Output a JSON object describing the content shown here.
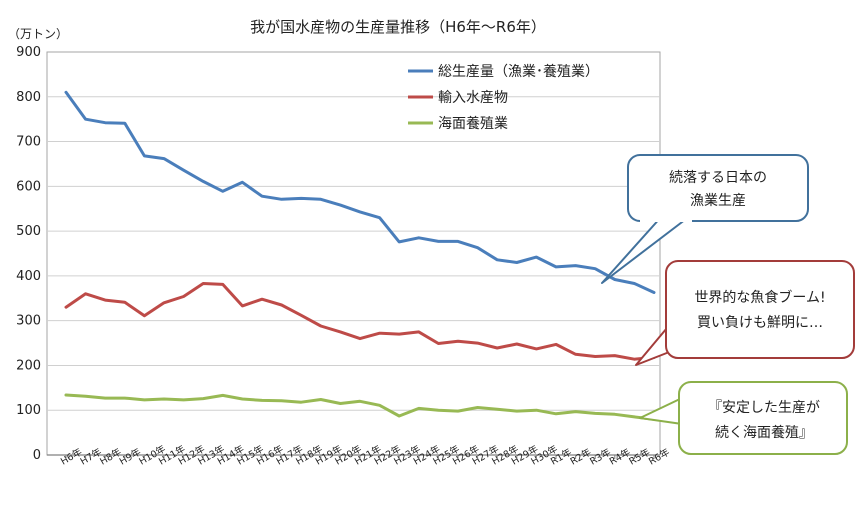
{
  "chart_data": {
    "type": "line",
    "title": "我が国水産物の生産量推移（H6年～R6年）",
    "ylabel": "（万トン）",
    "xlabel": "",
    "ylim": [
      0,
      900
    ],
    "yticks": [
      0,
      100,
      200,
      300,
      400,
      500,
      600,
      700,
      800,
      900
    ],
    "grid": "horizontal",
    "legend_position": "top-right",
    "categories": [
      "H6年",
      "H7年",
      "H8年",
      "H9年",
      "H10年",
      "H11年",
      "H12年",
      "H13年",
      "H14年",
      "H15年",
      "H16年",
      "H17年",
      "H18年",
      "H19年",
      "H20年",
      "H21年",
      "H22年",
      "H23年",
      "H24年",
      "H25年",
      "H26年",
      "H27年",
      "H28年",
      "H29年",
      "H30年",
      "R1年",
      "R2年",
      "R3年",
      "R4年",
      "R5年",
      "R6年"
    ],
    "series": [
      {
        "name": "総生産量（漁業･養殖業）",
        "color": "#4a7ebb",
        "values": [
          810,
          750,
          742,
          741,
          668,
          662,
          636,
          611,
          589,
          609,
          578,
          571,
          573,
          571,
          558,
          543,
          530,
          476,
          485,
          477,
          477,
          463,
          436,
          430,
          442,
          420,
          423,
          416,
          392,
          383,
          363
        ]
      },
      {
        "name": "輸入水産物",
        "color": "#be4b48",
        "values": [
          330,
          360,
          346,
          341,
          311,
          340,
          354,
          383,
          381,
          333,
          348,
          335,
          312,
          288,
          275,
          260,
          272,
          270,
          275,
          249,
          254,
          250,
          239,
          248,
          237,
          247,
          225,
          220,
          222,
          214,
          218
        ]
      },
      {
        "name": "海面養殖業",
        "color": "#98b954",
        "values": [
          134,
          131,
          127,
          127,
          123,
          125,
          123,
          126,
          133,
          125,
          122,
          121,
          118,
          124,
          115,
          120,
          111,
          87,
          104,
          100,
          98,
          106,
          102,
          98,
          100,
          92,
          97,
          93,
          91,
          85,
          80
        ]
      }
    ],
    "annotations": [
      {
        "id": "callout-fishery",
        "lines": [
          "続落する日本の",
          "漁業生産"
        ]
      },
      {
        "id": "callout-import",
        "lines": [
          "世界的な魚食ブーム!",
          "買い負けも鮮明に…"
        ]
      },
      {
        "id": "callout-aquaculture",
        "lines": [
          "『安定した生産が",
          "続く海面養殖』"
        ]
      }
    ]
  }
}
